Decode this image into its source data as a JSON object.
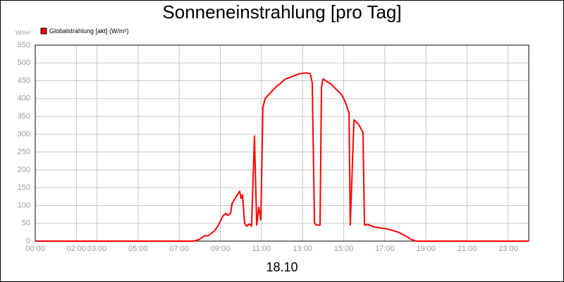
{
  "chart_data": {
    "type": "line",
    "title": "Sonneneinstrahlung [pro Tag]",
    "y_unit": "W/m²",
    "x_label": "18.10",
    "xlim": [
      0,
      24
    ],
    "xticks": [
      {
        "value": 0,
        "label": "00:00"
      },
      {
        "value": 2,
        "label": "02:00"
      },
      {
        "value": 3,
        "label": "03:00"
      },
      {
        "value": 5,
        "label": "05:00"
      },
      {
        "value": 7,
        "label": "07:00"
      },
      {
        "value": 9,
        "label": "09:00"
      },
      {
        "value": 11,
        "label": "11:00"
      },
      {
        "value": 13,
        "label": "13:00"
      },
      {
        "value": 15,
        "label": "15:00"
      },
      {
        "value": 17,
        "label": "17:00"
      },
      {
        "value": 19,
        "label": "19:00"
      },
      {
        "value": 21,
        "label": "21:00"
      },
      {
        "value": 23,
        "label": "23:00"
      }
    ],
    "ylim": [
      0,
      550
    ],
    "yticks": [
      0,
      50,
      100,
      150,
      200,
      250,
      300,
      350,
      400,
      450,
      500,
      550
    ],
    "grid": true,
    "x": [
      0,
      7.7,
      7.99,
      8.23,
      8.4,
      8.57,
      8.74,
      8.91,
      9.12,
      9.26,
      9.36,
      9.5,
      9.57,
      9.77,
      9.94,
      10.01,
      10.08,
      10.18,
      10.28,
      10.42,
      10.52,
      10.66,
      10.77,
      10.87,
      10.97,
      11.07,
      11.18,
      11.66,
      12.17,
      12.86,
      13.2,
      13.37,
      13.47,
      13.58,
      13.68,
      13.85,
      13.92,
      13.99,
      14.4,
      14.91,
      15.08,
      15.26,
      15.32,
      15.5,
      15.7,
      15.94,
      16.01,
      16.18,
      16.46,
      17.14,
      17.66,
      18.0,
      18.27,
      18.51,
      24
    ],
    "series": [
      {
        "name": "Globalstrahlung [akt] (W/m²)",
        "color": "#ff0000",
        "values": [
          0,
          0,
          5,
          15,
          15,
          22,
          30,
          45,
          70,
          78,
          72,
          78,
          105,
          125,
          140,
          120,
          130,
          50,
          42,
          48,
          42,
          295,
          45,
          95,
          60,
          375,
          400,
          430,
          455,
          470,
          472,
          470,
          445,
          50,
          45,
          45,
          430,
          455,
          440,
          410,
          390,
          360,
          45,
          340,
          330,
          305,
          45,
          47,
          40,
          34,
          25,
          15,
          5,
          0,
          0
        ]
      }
    ]
  }
}
